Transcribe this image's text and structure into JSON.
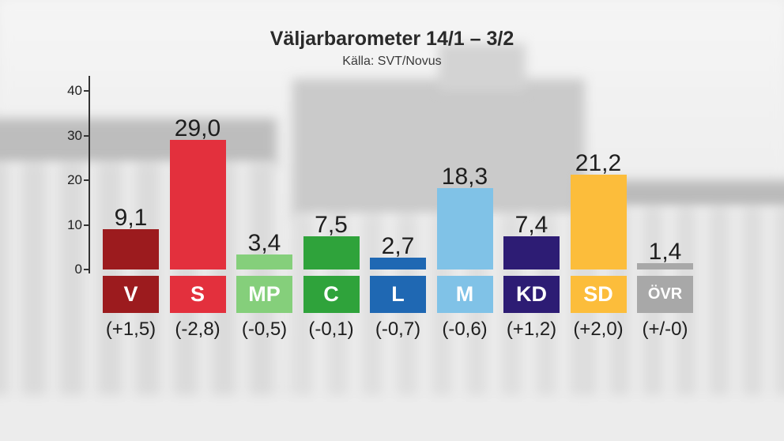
{
  "chart_data": {
    "type": "bar",
    "title": "Väljarbarometer 14/1 – 3/2",
    "subtitle": "Källa: SVT/Novus",
    "xlabel": "",
    "ylabel": "",
    "categories": [
      "V",
      "S",
      "MP",
      "C",
      "L",
      "M",
      "KD",
      "SD",
      "ÖVR"
    ],
    "values": [
      9.1,
      29.0,
      3.4,
      7.5,
      2.7,
      18.3,
      7.4,
      21.2,
      1.4
    ],
    "value_labels": [
      "9,1",
      "29,0",
      "3,4",
      "7,5",
      "2,7",
      "18,3",
      "7,4",
      "21,2",
      "1,4"
    ],
    "change_labels": [
      "(+1,5)",
      "(-2,8)",
      "(-0,5)",
      "(-0,1)",
      "(-0,7)",
      "(-0,6)",
      "(+1,2)",
      "(+2,0)",
      "(+/-0)"
    ],
    "colors": [
      "#9c1b1e",
      "#e3303d",
      "#85cf7b",
      "#2fa33b",
      "#1f68b3",
      "#80c2e7",
      "#2d1c74",
      "#fcbd3b",
      "#a8a8a8"
    ],
    "ylim": [
      0,
      40
    ],
    "yticks": [
      "0",
      "10",
      "20",
      "30",
      "40"
    ],
    "grid": false
  }
}
